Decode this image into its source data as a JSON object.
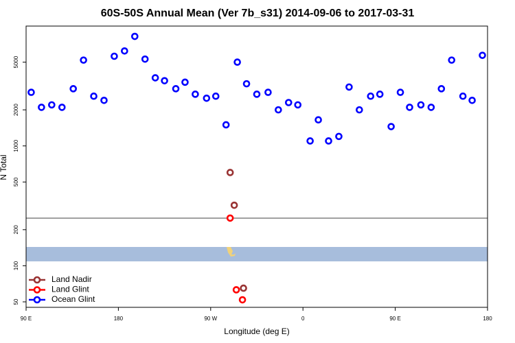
{
  "chart_data": {
    "type": "scatter",
    "title": "60S-50S Annual Mean (Ver 7b_s31)   2014-09-06 to 2017-03-31",
    "x_label": "Longitude (deg E)",
    "y_label": "N Total",
    "xlim": [
      90,
      540
    ],
    "xticks": [
      {
        "value": 90,
        "label": "90 E"
      },
      180,
      {
        "value": 270,
        "label": "90 W"
      },
      {
        "value": 360,
        "label": "0"
      },
      {
        "value": 450,
        "label": "90 E"
      },
      {
        "value": 540,
        "label": "180"
      }
    ],
    "ylim": [
      45,
      10000
    ],
    "y_log": true,
    "yticks": [
      50,
      100,
      200,
      500,
      1000,
      2000,
      5000
    ],
    "legend": "bottom-left",
    "series": [
      {
        "name": "Land Nadir",
        "color": "#993333",
        "x": [
          289,
          293,
          302
        ],
        "values": [
          600,
          320,
          65
        ]
      },
      {
        "name": "Land Glint",
        "color": "#ff0000",
        "x": [
          289,
          295,
          301
        ],
        "values": [
          250,
          63,
          52
        ]
      },
      {
        "name": "Ocean Glint",
        "color": "#0000ff",
        "x": [
          95,
          105,
          115,
          125,
          136,
          146,
          156,
          166,
          176,
          186,
          196,
          206,
          216,
          225,
          236,
          245,
          255,
          266,
          275,
          285,
          296,
          305,
          315,
          326,
          336,
          346,
          355,
          367,
          375,
          385,
          395,
          405,
          415,
          426,
          435,
          446,
          455,
          464,
          475,
          485,
          495,
          505,
          516,
          525,
          535
        ],
        "values": [
          2800,
          2100,
          2200,
          2100,
          3000,
          5200,
          2600,
          2400,
          5600,
          6200,
          8200,
          5300,
          3700,
          3500,
          3000,
          3400,
          2700,
          2500,
          2600,
          1500,
          5000,
          3300,
          2700,
          2800,
          2000,
          2300,
          2200,
          1100,
          1650,
          1100,
          1200,
          3100,
          2000,
          2600,
          2700,
          1450,
          2800,
          2100,
          2200,
          2100,
          3000,
          5200,
          2600,
          2400,
          5700
        ]
      }
    ]
  }
}
